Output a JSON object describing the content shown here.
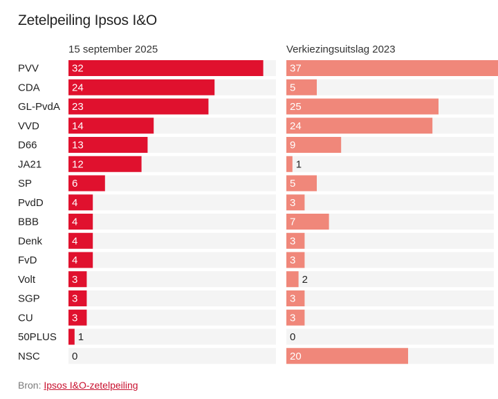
{
  "title": "Zetelpeiling Ipsos I&O",
  "source_label": "Bron:",
  "source_link": "Ipsos I&O-zetelpeiling",
  "colors": {
    "poll": "#e0112e",
    "result": "#f0877a",
    "track": "#f4f4f4",
    "label_on_bar": "#ffffff",
    "label_outside": "#222222"
  },
  "chart_data": {
    "type": "bar",
    "orientation": "horizontal",
    "categories": [
      "PVV",
      "CDA",
      "GL-PvdA",
      "VVD",
      "D66",
      "JA21",
      "SP",
      "PvdD",
      "BBB",
      "Denk",
      "FvD",
      "Volt",
      "SGP",
      "CU",
      "50PLUS",
      "NSC"
    ],
    "series": [
      {
        "name": "15 september 2025",
        "values": [
          32,
          24,
          23,
          14,
          13,
          12,
          6,
          4,
          4,
          4,
          4,
          3,
          3,
          3,
          1,
          0
        ]
      },
      {
        "name": "Verkiezingsuitslag 2023",
        "values": [
          37,
          5,
          25,
          24,
          9,
          1,
          5,
          3,
          7,
          3,
          3,
          2,
          3,
          3,
          0,
          20
        ]
      }
    ],
    "xlim": [
      0,
      40
    ],
    "data_labels": true,
    "grid": false,
    "title": "Zetelpeiling Ipsos I&O"
  }
}
